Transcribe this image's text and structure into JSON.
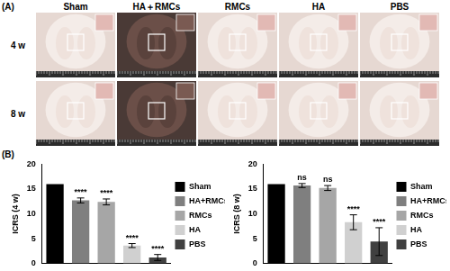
{
  "panel_a": {
    "label": "(A)",
    "columns": [
      "Sham",
      "HA＋RMCs",
      "RMCs",
      "HA",
      "PBS"
    ],
    "rows": [
      "4 w",
      "8 w"
    ]
  },
  "panel_b": {
    "label": "(B)"
  },
  "chart_data": [
    {
      "type": "bar",
      "y_label": "ICRS (4 w)",
      "categories": [
        "Sham",
        "HA+RMCs",
        "RMCs",
        "HA",
        "PBS"
      ],
      "values": [
        16,
        12.7,
        12.4,
        3.6,
        1.2
      ],
      "errors": [
        null,
        0.5,
        0.6,
        0.4,
        0.6
      ],
      "significance": [
        null,
        "****",
        "****",
        "****",
        "****"
      ],
      "colors": [
        "#000000",
        "#7f7f7f",
        "#a6a6a6",
        "#d0d0d0",
        "#404040"
      ],
      "ylim": [
        0,
        20
      ],
      "yticks": [
        0,
        5,
        10,
        15,
        20
      ],
      "grid": false,
      "legend": "right",
      "tick_labels": "y"
    },
    {
      "type": "bar",
      "y_label": "ICRS (8 w)",
      "categories": [
        "Sham",
        "HA+RMCs",
        "RMCs",
        "HA",
        "PBS"
      ],
      "values": [
        16,
        15.7,
        15.2,
        8.3,
        4.4
      ],
      "errors": [
        null,
        0.4,
        0.5,
        1.5,
        2.8
      ],
      "significance": [
        null,
        "ns",
        "ns",
        "****",
        "****"
      ],
      "colors": [
        "#000000",
        "#7f7f7f",
        "#a6a6a6",
        "#d0d0d0",
        "#404040"
      ],
      "ylim": [
        0,
        20
      ],
      "yticks": [
        0,
        5,
        10,
        15,
        20
      ],
      "grid": false,
      "legend": "right",
      "tick_labels": "y"
    }
  ]
}
